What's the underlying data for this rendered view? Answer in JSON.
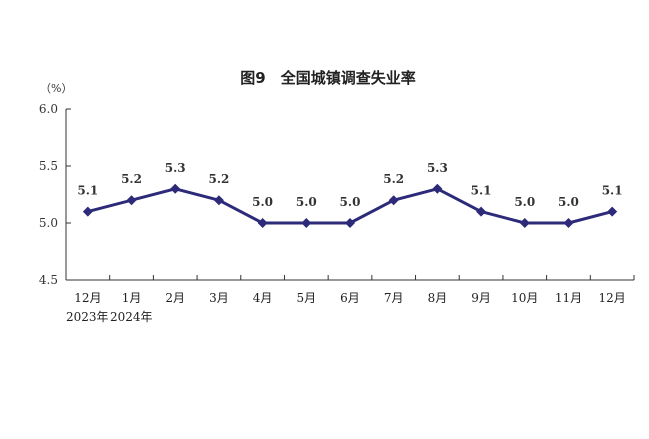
{
  "chart_data": {
    "type": "line",
    "title": "图9　全国城镇调查失业率",
    "ylabel": "（%）",
    "ylim": [
      4.5,
      6.0
    ],
    "yticks": [
      "4.5",
      "5.0",
      "5.5",
      "6.0"
    ],
    "categories": [
      "12月",
      "1月",
      "2月",
      "3月",
      "4月",
      "5月",
      "6月",
      "7月",
      "8月",
      "9月",
      "10月",
      "11月",
      "12月"
    ],
    "year_labels": [
      "2023年",
      "2024年"
    ],
    "series": [
      {
        "values": [
          5.1,
          5.2,
          5.3,
          5.2,
          5.0,
          5.0,
          5.0,
          5.2,
          5.3,
          5.1,
          5.0,
          5.0,
          5.1
        ],
        "labels": [
          "5.1",
          "5.2",
          "5.3",
          "5.2",
          "5.0",
          "5.0",
          "5.0",
          "5.2",
          "5.3",
          "5.1",
          "5.0",
          "5.0",
          "5.1"
        ]
      }
    ],
    "grid": false,
    "colors": {
      "series": "#2e2a7a",
      "axis": "#333333"
    }
  }
}
